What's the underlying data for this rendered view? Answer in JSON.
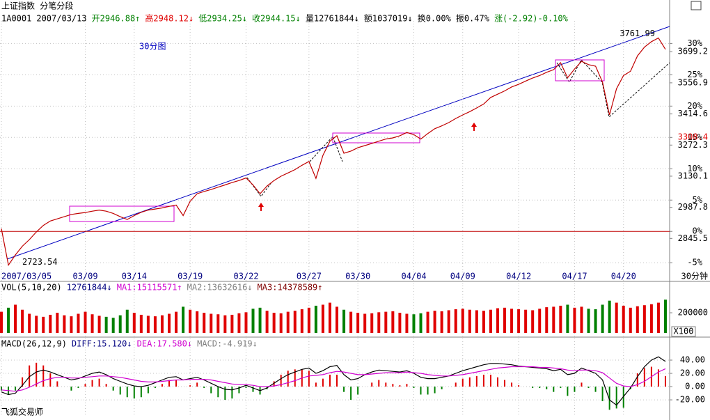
{
  "header": {
    "title": "上证指数 分笔分段",
    "fields": [
      {
        "text": "1A0001",
        "color": "#000000"
      },
      {
        "text": "2007/03/13",
        "color": "#000000"
      },
      {
        "text": "开2946.88↑",
        "color": "#008000"
      },
      {
        "text": "高2948.12↓",
        "color": "#e00000"
      },
      {
        "text": "低2934.25↓",
        "color": "#008000"
      },
      {
        "text": "收2944.15↓",
        "color": "#008000"
      },
      {
        "text": "量12761844↓",
        "color": "#000000"
      },
      {
        "text": "额1037019↓",
        "color": "#000000"
      },
      {
        "text": "换0.00%",
        "color": "#000000"
      },
      {
        "text": "振0.47%",
        "color": "#000000"
      },
      {
        "text": "涨(-2.92)-0.10%",
        "color": "#008000"
      }
    ],
    "footer": "飞狐交易师"
  },
  "chart_data": [
    {
      "type": "line",
      "annotation": "30分图",
      "xlabel": "30分钟",
      "current_price": 3308.4,
      "xlim": [
        -0.2,
        95.6
      ],
      "xticks": [
        {
          "value": 0,
          "label": "2007/03/05"
        },
        {
          "value": 12,
          "label": "03/09"
        },
        {
          "value": 19,
          "label": "03/14"
        },
        {
          "value": 27,
          "label": "03/19"
        },
        {
          "value": 35,
          "label": "03/22"
        },
        {
          "value": 44,
          "label": "03/27"
        },
        {
          "value": 51,
          "label": "03/30"
        },
        {
          "value": 59,
          "label": "04/04"
        },
        {
          "value": 66,
          "label": "04/09"
        },
        {
          "value": 74,
          "label": "04/12"
        },
        {
          "value": 82,
          "label": "04/17"
        },
        {
          "value": 89,
          "label": "04/20"
        }
      ],
      "ylim": [
        2700,
        3840
      ],
      "yticks": [
        2845.5,
        2987.8,
        3130.1,
        3272.3,
        3414.6,
        3556.9,
        3699.2
      ],
      "y2lim": [
        -6.2,
        33.6
      ],
      "y2ticks": [
        {
          "value": -5,
          "label": "-5%"
        },
        {
          "value": 0,
          "label": "0%"
        },
        {
          "value": 5,
          "label": "5%"
        },
        {
          "value": 10,
          "label": "10%"
        },
        {
          "value": 15,
          "label": "15%"
        },
        {
          "value": 20,
          "label": "20%"
        },
        {
          "value": 25,
          "label": "25%"
        },
        {
          "value": 30,
          "label": "30%"
        }
      ],
      "zero_line_color": "#c00000",
      "series": [
        {
          "color": "#c00000",
          "values": [
            2890,
            2723.54,
            2770,
            2810,
            2840,
            2875,
            2905,
            2925,
            2935,
            2945,
            2955,
            2960,
            2964,
            2970,
            2975,
            2970,
            2960,
            2945,
            2932,
            2950,
            2965,
            2975,
            2980,
            2985,
            2992,
            2998,
            2950,
            3015,
            3050,
            3060,
            3069,
            3080,
            3090,
            3101,
            3110,
            3122,
            3090,
            3050,
            3085,
            3110,
            3130,
            3145,
            3160,
            3180,
            3197,
            3120,
            3225,
            3290,
            3315,
            3235,
            3245,
            3260,
            3270,
            3280,
            3290,
            3300,
            3305,
            3315,
            3330,
            3320,
            3300,
            3325,
            3347,
            3360,
            3375,
            3394,
            3410,
            3425,
            3442,
            3460,
            3490,
            3505,
            3520,
            3538,
            3550,
            3565,
            3579,
            3590,
            3605,
            3617,
            3649,
            3580,
            3620,
            3655,
            3640,
            3633,
            3560,
            3410,
            3530,
            3590,
            3610,
            3680,
            3720,
            3745,
            3761.99,
            3710
          ]
        }
      ]
    },
    {
      "type": "bar",
      "header": [
        {
          "text": "VOL(5,10,20)",
          "color": "#000000"
        },
        {
          "text": "12761844↓",
          "color": "#000080"
        },
        {
          "text": "MA1:15115571↑",
          "color": "#d000d0"
        },
        {
          "text": "MA2:13632616↓",
          "color": "#808080"
        },
        {
          "text": "MA3:14378589↑",
          "color": "#800000"
        }
      ],
      "unit_label": "X100",
      "up_color": "#e00000",
      "down_color": "#008000",
      "xlim": [
        -0.2,
        95.6
      ],
      "ylim": [
        0,
        380000
      ],
      "yticks": [
        200000
      ],
      "values": [
        210000,
        250000,
        280000,
        230000,
        190000,
        170000,
        160000,
        180000,
        200000,
        175000,
        165000,
        190000,
        210000,
        185000,
        170000,
        160000,
        150000,
        175000,
        230000,
        200000,
        180000,
        170000,
        165000,
        175000,
        190000,
        210000,
        260000,
        230000,
        215000,
        200000,
        190000,
        185000,
        175000,
        180000,
        195000,
        205000,
        240000,
        250000,
        220000,
        200000,
        195000,
        210000,
        220000,
        235000,
        250000,
        270000,
        280000,
        300000,
        260000,
        230000,
        210000,
        200000,
        190000,
        195000,
        205000,
        210000,
        215000,
        200000,
        190000,
        185000,
        195000,
        210000,
        220000,
        215000,
        225000,
        235000,
        240000,
        230000,
        225000,
        220000,
        230000,
        245000,
        250000,
        240000,
        235000,
        230000,
        225000,
        240000,
        255000,
        260000,
        270000,
        280000,
        250000,
        260000,
        240000,
        235000,
        280000,
        320000,
        300000,
        270000,
        250000,
        265000,
        275000,
        285000,
        300000,
        330000
      ]
    },
    {
      "type": "macd",
      "header": [
        {
          "text": "MACD(26,12,9)",
          "color": "#000000"
        },
        {
          "text": "DIFF:15.120↓",
          "color": "#000080"
        },
        {
          "text": "DEA:17.580↓",
          "color": "#d000d0"
        },
        {
          "text": "MACD:-4.919↓",
          "color": "#808080"
        }
      ],
      "up_color": "#e00000",
      "down_color": "#008000",
      "xlim": [
        -0.2,
        95.6
      ],
      "ylim": [
        -42,
        60
      ],
      "yticks": [
        {
          "value": 40,
          "label": "40.00"
        },
        {
          "value": 20,
          "label": "20.00"
        },
        {
          "value": 0,
          "label": "0.00"
        },
        {
          "value": -20,
          "label": "-20.00"
        }
      ],
      "histogram": [
        -6,
        -12,
        -6,
        14,
        32,
        36,
        32,
        20,
        8,
        0,
        -6,
        -2,
        4,
        10,
        12,
        4,
        -6,
        -12,
        -16,
        -18,
        -16,
        -10,
        -2,
        4,
        10,
        10,
        0,
        2,
        6,
        -2,
        -10,
        -16,
        -20,
        -18,
        -10,
        -2,
        -8,
        -12,
        -4,
        8,
        18,
        24,
        26,
        26,
        24,
        6,
        12,
        18,
        18,
        -8,
        -20,
        -12,
        0,
        6,
        10,
        6,
        4,
        2,
        4,
        -2,
        -12,
        -12,
        -10,
        -4,
        0,
        6,
        12,
        14,
        16,
        18,
        18,
        14,
        10,
        6,
        2,
        0,
        -2,
        -2,
        -4,
        -8,
        -2,
        -14,
        -8,
        6,
        -2,
        -8,
        -22,
        -35,
        -33,
        -32,
        -4,
        20,
        28,
        30,
        26,
        16
      ],
      "series": [
        {
          "color": "#000000",
          "values": [
            -8,
            -12,
            -10,
            2,
            15,
            22,
            25,
            22,
            18,
            14,
            10,
            12,
            16,
            20,
            22,
            18,
            12,
            8,
            4,
            1,
            0,
            2,
            6,
            10,
            14,
            15,
            10,
            12,
            14,
            10,
            5,
            0,
            -4,
            -5,
            -2,
            2,
            -2,
            -6,
            -2,
            5,
            12,
            18,
            22,
            26,
            28,
            20,
            24,
            30,
            32,
            18,
            10,
            12,
            18,
            22,
            25,
            24,
            23,
            22,
            24,
            20,
            14,
            12,
            12,
            14,
            16,
            20,
            24,
            27,
            30,
            33,
            35,
            35,
            34,
            33,
            31,
            30,
            29,
            28,
            27,
            24,
            26,
            18,
            20,
            28,
            24,
            20,
            10,
            -20,
            -28,
            -15,
            -2,
            15,
            30,
            40,
            45,
            38
          ]
        },
        {
          "color": "#d000d0",
          "values": [
            -5,
            -6,
            -7,
            -5,
            -1,
            4,
            9,
            12,
            14,
            14,
            13,
            13,
            14,
            15,
            16,
            16,
            15,
            14,
            12,
            10,
            8,
            7,
            7,
            8,
            9,
            10,
            10,
            11,
            11,
            11,
            10,
            8,
            6,
            4,
            3,
            3,
            2,
            0,
            0,
            1,
            3,
            6,
            9,
            13,
            16,
            17,
            18,
            21,
            23,
            22,
            20,
            18,
            18,
            19,
            20,
            21,
            21,
            21,
            22,
            21,
            20,
            18,
            17,
            16,
            16,
            17,
            18,
            20,
            22,
            24,
            26,
            28,
            29,
            30,
            30,
            30,
            30,
            29,
            29,
            28,
            27,
            25,
            24,
            25,
            25,
            24,
            21,
            13,
            5,
            1,
            0,
            3,
            8,
            15,
            22,
            27
          ]
        }
      ]
    }
  ]
}
